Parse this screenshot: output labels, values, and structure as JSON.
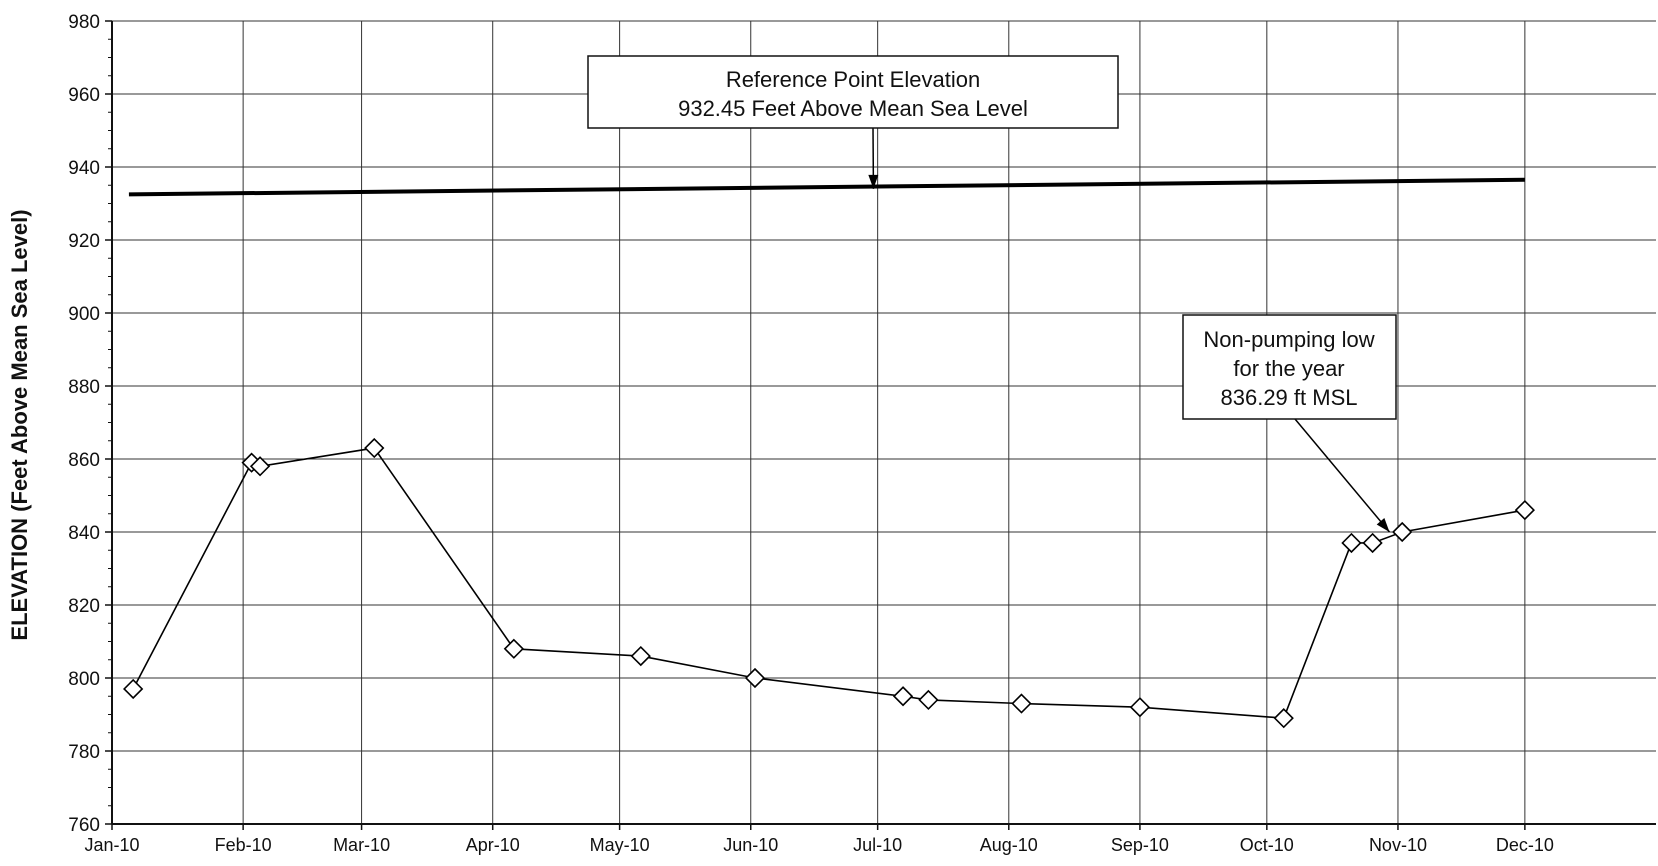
{
  "chart_data": {
    "type": "line",
    "ylabel": "ELEVATION (Feet Above Mean Sea Level)",
    "xlabel": "",
    "ylim": [
      760,
      980
    ],
    "y_ticks": [
      "760",
      "780",
      "800",
      "820",
      "840",
      "860",
      "880",
      "900",
      "920",
      "940",
      "960",
      "980"
    ],
    "x_start": "2010-01-01",
    "x_end": "2011-01-01",
    "x_ticks": [
      {
        "label": "Jan-10",
        "date": "2010-01-01"
      },
      {
        "label": "Feb-10",
        "date": "2010-02-01"
      },
      {
        "label": "Mar-10",
        "date": "2010-03-01"
      },
      {
        "label": "Apr-10",
        "date": "2010-04-01"
      },
      {
        "label": "May-10",
        "date": "2010-05-01"
      },
      {
        "label": "Jun-10",
        "date": "2010-06-01"
      },
      {
        "label": "Jul-10",
        "date": "2010-07-01"
      },
      {
        "label": "Aug-10",
        "date": "2010-08-01"
      },
      {
        "label": "Sep-10",
        "date": "2010-09-01"
      },
      {
        "label": "Oct-10",
        "date": "2010-10-01"
      },
      {
        "label": "Nov-10",
        "date": "2010-11-01"
      },
      {
        "label": "Dec-10",
        "date": "2010-12-01"
      }
    ],
    "grid": true,
    "series": [
      {
        "marker": "diamond",
        "points": [
          {
            "x": "2010-01-06",
            "y": 797
          },
          {
            "x": "2010-02-03",
            "y": 859
          },
          {
            "x": "2010-02-05",
            "y": 858
          },
          {
            "x": "2010-03-04",
            "y": 863
          },
          {
            "x": "2010-04-06",
            "y": 808
          },
          {
            "x": "2010-05-06",
            "y": 806
          },
          {
            "x": "2010-06-02",
            "y": 800
          },
          {
            "x": "2010-07-07",
            "y": 795
          },
          {
            "x": "2010-07-13",
            "y": 794
          },
          {
            "x": "2010-08-04",
            "y": 793
          },
          {
            "x": "2010-09-01",
            "y": 792
          },
          {
            "x": "2010-10-05",
            "y": 789
          },
          {
            "x": "2010-10-21",
            "y": 837
          },
          {
            "x": "2010-10-26",
            "y": 837
          },
          {
            "x": "2010-11-02",
            "y": 840
          },
          {
            "x": "2010-12-01",
            "y": 846
          }
        ]
      }
    ],
    "reference_line": {
      "start": {
        "x": "2010-01-05",
        "y": 932.5
      },
      "end": {
        "x": "2010-12-01",
        "y": 936.5
      }
    },
    "annotations": [
      {
        "lines": [
          "Reference Point Elevation",
          "932.45 Feet Above Mean Sea Level"
        ],
        "target": {
          "x": "2010-06-30",
          "y": 934
        }
      },
      {
        "lines": [
          "Non-pumping low",
          "for the year",
          "836.29 ft MSL"
        ],
        "target": {
          "x": "2010-10-30",
          "y": 840
        }
      }
    ]
  }
}
